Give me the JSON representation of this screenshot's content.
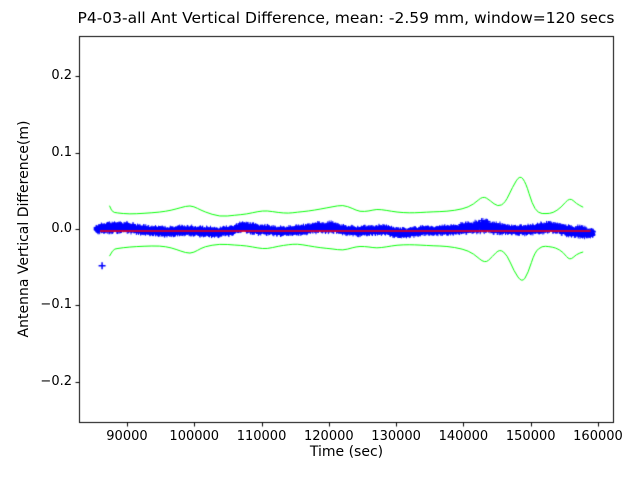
{
  "chart_data": {
    "type": "scatter",
    "title": "P4-03-all Ant Vertical Difference, mean: -2.59 mm, window=120 secs",
    "xlabel": "Time (sec)",
    "ylabel": "Antenna Vertical Difference(m)",
    "mean_mm": -2.59,
    "window_secs": 120,
    "grid": false,
    "legend": "none",
    "xlim": [
      82870,
      162230
    ],
    "ylim": [
      -0.2525,
      0.2525
    ],
    "xticks": {
      "values": [
        90000,
        100000,
        110000,
        120000,
        130000,
        140000,
        150000,
        160000
      ],
      "labels": [
        "90000",
        "100000",
        "110000",
        "120000",
        "130000",
        "140000",
        "150000",
        "160000"
      ]
    },
    "yticks": {
      "values": [
        0.2,
        0.1,
        0.0,
        -0.1,
        -0.2
      ],
      "labels": [
        "0.2",
        "0.1",
        "0.0",
        "−0.1",
        "−0.2"
      ]
    },
    "colors": {
      "samples": "#0000ff",
      "envelope": "#00ff00",
      "mean_line": "#ff0000",
      "axis": "#000000",
      "background": "#ffffff"
    },
    "series": [
      {
        "name": "antenna-vertical-difference-samples",
        "plot": "scatter-band",
        "marker": "+",
        "color": "#0000ff",
        "t_start": 85400,
        "t_end": 159300,
        "sample_step_sec": 18,
        "band": {
          "t": [
            85400,
            87000,
            89000,
            91000,
            93500,
            96000,
            98500,
            101000,
            103500,
            105500,
            107200,
            109000,
            111000,
            113000,
            115000,
            117000,
            119000,
            120500,
            122000,
            124000,
            126000,
            128000,
            130000,
            131500,
            133000,
            135000,
            137000,
            139000,
            141000,
            143000,
            144500,
            146000,
            148000,
            150000,
            151500,
            153000,
            154500,
            156000,
            157500,
            158800,
            159300
          ],
          "center": [
            0.0,
            0.0015,
            0.0025,
            0.0005,
            -0.0025,
            -0.0035,
            -0.002,
            -0.003,
            -0.0045,
            -0.002,
            0.003,
            0.0,
            -0.0015,
            -0.003,
            -0.002,
            0.0,
            0.002,
            0.0025,
            -0.001,
            -0.003,
            -0.002,
            -0.001,
            -0.0045,
            -0.0055,
            -0.003,
            -0.002,
            -0.0015,
            -0.0005,
            0.002,
            0.0035,
            0.002,
            0.0,
            -0.0015,
            -0.001,
            0.001,
            0.003,
            0.0,
            -0.003,
            -0.0045,
            -0.005,
            -0.005
          ],
          "half_width": [
            0.004,
            0.006,
            0.0065,
            0.0055,
            0.005,
            0.005,
            0.0052,
            0.0055,
            0.005,
            0.0052,
            0.0055,
            0.006,
            0.0055,
            0.005,
            0.005,
            0.0055,
            0.006,
            0.0065,
            0.005,
            0.005,
            0.005,
            0.0052,
            0.0055,
            0.005,
            0.005,
            0.005,
            0.0052,
            0.0055,
            0.0065,
            0.008,
            0.007,
            0.006,
            0.005,
            0.0055,
            0.006,
            0.0065,
            0.006,
            0.0065,
            0.0075,
            0.005,
            0.004
          ]
        }
      },
      {
        "name": "isolated-outlier",
        "plot": "scatter",
        "marker": "+",
        "color": "#0000ff",
        "points": [
          [
            86300,
            -0.048
          ]
        ]
      },
      {
        "name": "running-mean-line",
        "plot": "line",
        "color": "#ff0000",
        "points": [
          [
            86000,
            -0.00259
          ],
          [
            158900,
            -0.00259
          ]
        ]
      },
      {
        "name": "upper-envelope",
        "plot": "line",
        "color": "#00ff00",
        "points": [
          [
            87400,
            0.0305
          ],
          [
            87700,
            0.0225
          ],
          [
            88500,
            0.021
          ],
          [
            90400,
            0.0195
          ],
          [
            92500,
            0.0205
          ],
          [
            94900,
            0.022
          ],
          [
            96600,
            0.0245
          ],
          [
            98000,
            0.028
          ],
          [
            99400,
            0.031
          ],
          [
            100500,
            0.027
          ],
          [
            101500,
            0.0225
          ],
          [
            103800,
            0.016
          ],
          [
            106000,
            0.018
          ],
          [
            107800,
            0.0195
          ],
          [
            109500,
            0.023
          ],
          [
            110800,
            0.024
          ],
          [
            112500,
            0.0215
          ],
          [
            114000,
            0.0205
          ],
          [
            115300,
            0.022
          ],
          [
            117000,
            0.0235
          ],
          [
            118700,
            0.026
          ],
          [
            120500,
            0.029
          ],
          [
            122100,
            0.0315
          ],
          [
            123500,
            0.027
          ],
          [
            124600,
            0.0225
          ],
          [
            126000,
            0.0235
          ],
          [
            127100,
            0.026
          ],
          [
            128500,
            0.0245
          ],
          [
            130100,
            0.022
          ],
          [
            132000,
            0.021
          ],
          [
            133500,
            0.0215
          ],
          [
            135500,
            0.0225
          ],
          [
            137500,
            0.023
          ],
          [
            139900,
            0.026
          ],
          [
            141500,
            0.032
          ],
          [
            142900,
            0.0435
          ],
          [
            144000,
            0.037
          ],
          [
            145100,
            0.029
          ],
          [
            146200,
            0.034
          ],
          [
            147300,
            0.055
          ],
          [
            148400,
            0.071
          ],
          [
            149300,
            0.06
          ],
          [
            150200,
            0.033
          ],
          [
            151100,
            0.0205
          ],
          [
            152300,
            0.02
          ],
          [
            153300,
            0.021
          ],
          [
            154500,
            0.028
          ],
          [
            155800,
            0.0415
          ],
          [
            156800,
            0.033
          ],
          [
            157800,
            0.0285
          ]
        ]
      },
      {
        "name": "lower-envelope",
        "plot": "line",
        "color": "#00ff00",
        "points": [
          [
            87400,
            -0.0355
          ],
          [
            87900,
            -0.027
          ],
          [
            88500,
            -0.0255
          ],
          [
            90400,
            -0.0235
          ],
          [
            92500,
            -0.0225
          ],
          [
            94900,
            -0.022
          ],
          [
            96600,
            -0.0245
          ],
          [
            98000,
            -0.029
          ],
          [
            99400,
            -0.0325
          ],
          [
            100500,
            -0.028
          ],
          [
            101500,
            -0.023
          ],
          [
            103800,
            -0.0195
          ],
          [
            106000,
            -0.021
          ],
          [
            107800,
            -0.022
          ],
          [
            109500,
            -0.025
          ],
          [
            110800,
            -0.026
          ],
          [
            112500,
            -0.0225
          ],
          [
            114000,
            -0.0205
          ],
          [
            115300,
            -0.0195
          ],
          [
            117000,
            -0.022
          ],
          [
            118700,
            -0.0245
          ],
          [
            120500,
            -0.026
          ],
          [
            122100,
            -0.028
          ],
          [
            123500,
            -0.0245
          ],
          [
            124600,
            -0.0225
          ],
          [
            126000,
            -0.0235
          ],
          [
            127100,
            -0.025
          ],
          [
            128500,
            -0.0235
          ],
          [
            130100,
            -0.021
          ],
          [
            132000,
            -0.0205
          ],
          [
            133500,
            -0.021
          ],
          [
            135500,
            -0.022
          ],
          [
            137500,
            -0.0225
          ],
          [
            139900,
            -0.026
          ],
          [
            141500,
            -0.032
          ],
          [
            143200,
            -0.0455
          ],
          [
            144300,
            -0.036
          ],
          [
            145400,
            -0.026
          ],
          [
            146500,
            -0.034
          ],
          [
            147500,
            -0.055
          ],
          [
            148700,
            -0.0705
          ],
          [
            149600,
            -0.058
          ],
          [
            150600,
            -0.03
          ],
          [
            151700,
            -0.0222
          ],
          [
            152700,
            -0.023
          ],
          [
            153700,
            -0.0245
          ],
          [
            154800,
            -0.03
          ],
          [
            155800,
            -0.0415
          ],
          [
            156800,
            -0.033
          ],
          [
            157800,
            -0.03
          ]
        ]
      }
    ]
  }
}
